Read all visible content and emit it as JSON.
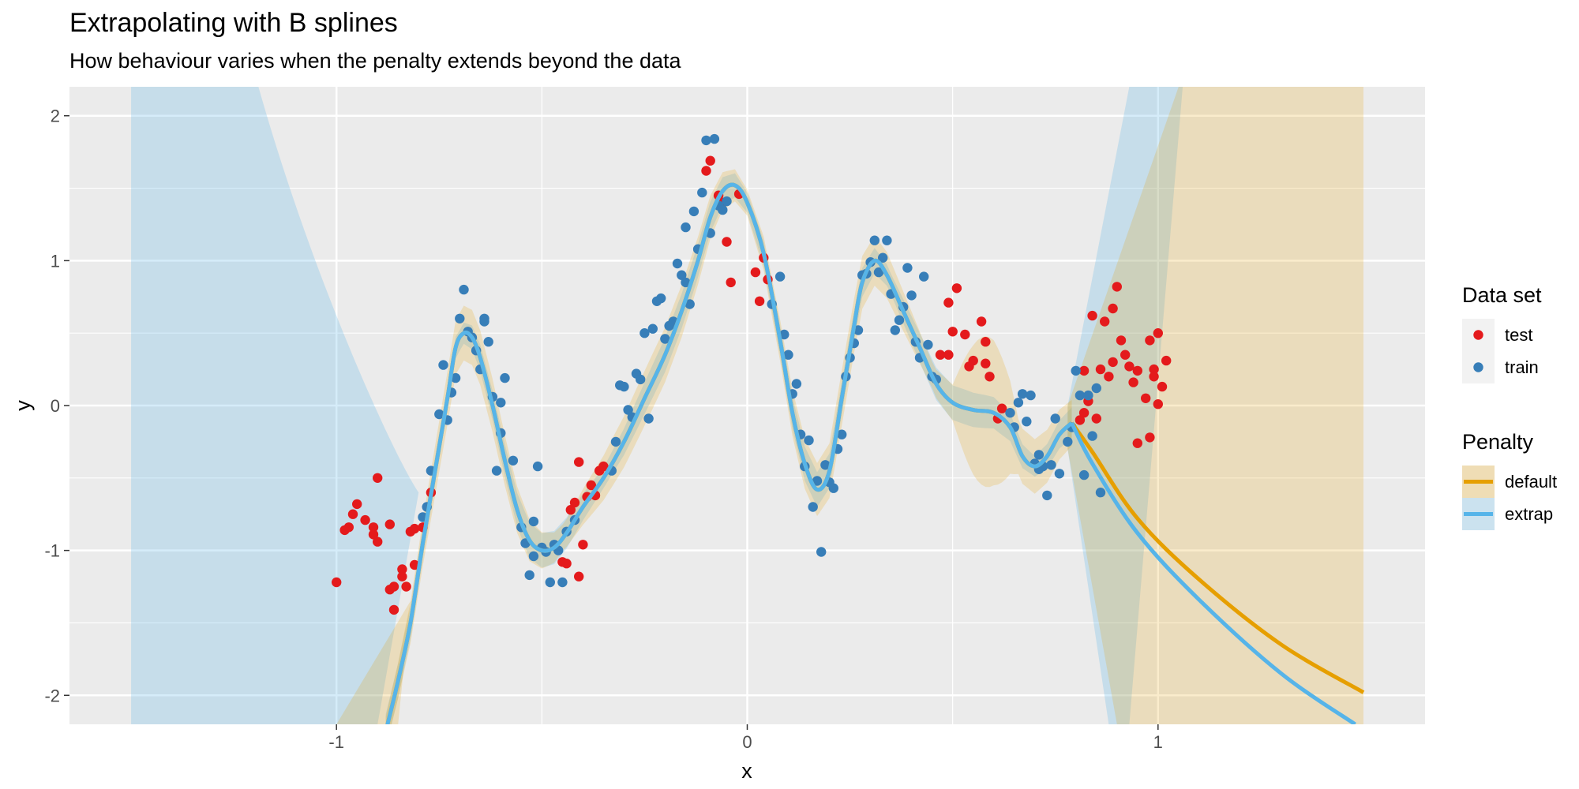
{
  "chart_data": {
    "type": "scatter",
    "title": "Extrapolating with B splines",
    "subtitle": "How behaviour varies when the penalty extends beyond the data",
    "xlabel": "x",
    "ylabel": "y",
    "xlim": [
      -1.65,
      1.65
    ],
    "ylim": [
      -2.2,
      2.2
    ],
    "x_ticks": [
      -1,
      0,
      1
    ],
    "x_tick_labels": [
      "-1",
      "0",
      "1"
    ],
    "y_ticks": [
      -2,
      -1,
      0,
      1,
      2
    ],
    "y_tick_labels": [
      "-2",
      "-1",
      "0",
      "1",
      "2"
    ],
    "grid": true,
    "legend_position": "right",
    "colors": {
      "panel": "#ebebeb",
      "grid": "#ffffff",
      "test": "#e41a1c",
      "train": "#377eb8",
      "default": "#e69f00",
      "extrap": "#56b4e9"
    },
    "legends": [
      {
        "title": "Data set",
        "entries": [
          {
            "label": "test",
            "key": "test"
          },
          {
            "label": "train",
            "key": "train"
          }
        ]
      },
      {
        "title": "Penalty",
        "entries": [
          {
            "label": "default",
            "key": "default"
          },
          {
            "label": "extrap",
            "key": "extrap"
          }
        ]
      }
    ],
    "points": {
      "test": [
        [
          -1.0,
          -1.22
        ],
        [
          -0.98,
          -0.86
        ],
        [
          -0.97,
          -0.84
        ],
        [
          -0.96,
          -0.75
        ],
        [
          -0.95,
          -0.68
        ],
        [
          -0.93,
          -0.79
        ],
        [
          -0.91,
          -0.84
        ],
        [
          -0.91,
          -0.89
        ],
        [
          -0.9,
          -0.94
        ],
        [
          -0.9,
          -0.5
        ],
        [
          -0.87,
          -1.27
        ],
        [
          -0.87,
          -0.82
        ],
        [
          -0.86,
          -1.41
        ],
        [
          -0.86,
          -1.25
        ],
        [
          -0.84,
          -1.13
        ],
        [
          -0.84,
          -1.18
        ],
        [
          -0.83,
          -1.25
        ],
        [
          -0.82,
          -0.87
        ],
        [
          -0.81,
          -0.85
        ],
        [
          -0.81,
          -1.1
        ],
        [
          -0.79,
          -0.84
        ],
        [
          -0.77,
          -0.6
        ],
        [
          -0.45,
          -1.08
        ],
        [
          -0.44,
          -1.09
        ],
        [
          -0.43,
          -0.72
        ],
        [
          -0.42,
          -0.67
        ],
        [
          -0.41,
          -1.18
        ],
        [
          -0.4,
          -0.96
        ],
        [
          -0.39,
          -0.63
        ],
        [
          -0.38,
          -0.55
        ],
        [
          -0.37,
          -0.62
        ],
        [
          -0.36,
          -0.45
        ],
        [
          -0.35,
          -0.42
        ],
        [
          -0.41,
          -0.39
        ],
        [
          -0.1,
          1.62
        ],
        [
          -0.09,
          1.69
        ],
        [
          -0.07,
          1.45
        ],
        [
          -0.06,
          1.4
        ],
        [
          -0.05,
          1.13
        ],
        [
          -0.04,
          0.85
        ],
        [
          -0.02,
          1.46
        ],
        [
          0.02,
          0.92
        ],
        [
          0.03,
          0.72
        ],
        [
          0.04,
          1.02
        ],
        [
          0.05,
          0.87
        ],
        [
          0.47,
          0.35
        ],
        [
          0.49,
          0.35
        ],
        [
          0.49,
          0.71
        ],
        [
          0.5,
          0.51
        ],
        [
          0.51,
          0.81
        ],
        [
          0.53,
          0.49
        ],
        [
          0.54,
          0.27
        ],
        [
          0.55,
          0.31
        ],
        [
          0.57,
          0.58
        ],
        [
          0.58,
          0.44
        ],
        [
          0.58,
          0.29
        ],
        [
          0.59,
          0.2
        ],
        [
          0.61,
          -0.09
        ],
        [
          0.62,
          -0.02
        ],
        [
          0.81,
          -0.1
        ],
        [
          0.82,
          0.24
        ],
        [
          0.82,
          -0.05
        ],
        [
          0.83,
          0.03
        ],
        [
          0.84,
          0.62
        ],
        [
          0.85,
          -0.09
        ],
        [
          0.86,
          0.25
        ],
        [
          0.87,
          0.58
        ],
        [
          0.88,
          0.2
        ],
        [
          0.89,
          0.67
        ],
        [
          0.89,
          0.3
        ],
        [
          0.9,
          0.82
        ],
        [
          0.91,
          0.45
        ],
        [
          0.92,
          0.35
        ],
        [
          0.93,
          0.27
        ],
        [
          0.94,
          0.16
        ],
        [
          0.95,
          0.24
        ],
        [
          0.95,
          -0.26
        ],
        [
          0.97,
          0.05
        ],
        [
          0.98,
          0.45
        ],
        [
          0.98,
          -0.22
        ],
        [
          0.99,
          0.25
        ],
        [
          0.99,
          0.2
        ],
        [
          1.0,
          0.01
        ],
        [
          1.0,
          0.5
        ],
        [
          1.01,
          0.13
        ],
        [
          1.02,
          0.31
        ]
      ],
      "train": [
        [
          -0.79,
          -0.77
        ],
        [
          -0.78,
          -0.7
        ],
        [
          -0.77,
          -0.45
        ],
        [
          -0.75,
          -0.06
        ],
        [
          -0.74,
          0.28
        ],
        [
          -0.73,
          -0.1
        ],
        [
          -0.72,
          0.09
        ],
        [
          -0.71,
          0.19
        ],
        [
          -0.7,
          0.6
        ],
        [
          -0.69,
          0.8
        ],
        [
          -0.68,
          0.51
        ],
        [
          -0.67,
          0.47
        ],
        [
          -0.66,
          0.38
        ],
        [
          -0.65,
          0.25
        ],
        [
          -0.64,
          0.58
        ],
        [
          -0.64,
          0.6
        ],
        [
          -0.63,
          0.44
        ],
        [
          -0.62,
          0.06
        ],
        [
          -0.61,
          -0.45
        ],
        [
          -0.6,
          0.02
        ],
        [
          -0.6,
          -0.19
        ],
        [
          -0.59,
          0.19
        ],
        [
          -0.57,
          -0.38
        ],
        [
          -0.55,
          -0.84
        ],
        [
          -0.54,
          -0.95
        ],
        [
          -0.53,
          -1.17
        ],
        [
          -0.52,
          -1.04
        ],
        [
          -0.52,
          -0.8
        ],
        [
          -0.51,
          -0.42
        ],
        [
          -0.5,
          -0.98
        ],
        [
          -0.49,
          -1.01
        ],
        [
          -0.48,
          -1.22
        ],
        [
          -0.47,
          -0.96
        ],
        [
          -0.46,
          -1.0
        ],
        [
          -0.45,
          -1.22
        ],
        [
          -0.44,
          -0.87
        ],
        [
          -0.42,
          -0.79
        ],
        [
          -0.33,
          -0.45
        ],
        [
          -0.32,
          -0.25
        ],
        [
          -0.31,
          0.14
        ],
        [
          -0.3,
          0.13
        ],
        [
          -0.29,
          -0.03
        ],
        [
          -0.28,
          -0.08
        ],
        [
          -0.27,
          0.22
        ],
        [
          -0.26,
          0.18
        ],
        [
          -0.25,
          0.5
        ],
        [
          -0.24,
          -0.09
        ],
        [
          -0.23,
          0.53
        ],
        [
          -0.22,
          0.72
        ],
        [
          -0.21,
          0.74
        ],
        [
          -0.2,
          0.46
        ],
        [
          -0.19,
          0.55
        ],
        [
          -0.18,
          0.58
        ],
        [
          -0.17,
          0.98
        ],
        [
          -0.16,
          0.9
        ],
        [
          -0.15,
          1.23
        ],
        [
          -0.15,
          0.85
        ],
        [
          -0.14,
          0.7
        ],
        [
          -0.13,
          1.34
        ],
        [
          -0.12,
          1.08
        ],
        [
          -0.11,
          1.47
        ],
        [
          -0.1,
          1.83
        ],
        [
          -0.09,
          1.19
        ],
        [
          -0.08,
          1.84
        ],
        [
          -0.07,
          1.38
        ],
        [
          -0.06,
          1.35
        ],
        [
          -0.05,
          1.41
        ],
        [
          0.06,
          0.7
        ],
        [
          0.08,
          0.89
        ],
        [
          0.09,
          0.49
        ],
        [
          0.1,
          0.35
        ],
        [
          0.11,
          0.08
        ],
        [
          0.12,
          0.15
        ],
        [
          0.13,
          -0.2
        ],
        [
          0.14,
          -0.42
        ],
        [
          0.15,
          -0.24
        ],
        [
          0.16,
          -0.7
        ],
        [
          0.17,
          -0.52
        ],
        [
          0.18,
          -1.01
        ],
        [
          0.19,
          -0.41
        ],
        [
          0.2,
          -0.53
        ],
        [
          0.21,
          -0.57
        ],
        [
          0.22,
          -0.3
        ],
        [
          0.23,
          -0.2
        ],
        [
          0.24,
          0.2
        ],
        [
          0.25,
          0.33
        ],
        [
          0.26,
          0.43
        ],
        [
          0.27,
          0.52
        ],
        [
          0.28,
          0.9
        ],
        [
          0.29,
          0.91
        ],
        [
          0.3,
          0.99
        ],
        [
          0.31,
          1.14
        ],
        [
          0.32,
          0.92
        ],
        [
          0.33,
          1.02
        ],
        [
          0.34,
          1.14
        ],
        [
          0.35,
          0.77
        ],
        [
          0.36,
          0.52
        ],
        [
          0.37,
          0.59
        ],
        [
          0.38,
          0.68
        ],
        [
          0.39,
          0.95
        ],
        [
          0.4,
          0.76
        ],
        [
          0.41,
          0.44
        ],
        [
          0.42,
          0.33
        ],
        [
          0.43,
          0.89
        ],
        [
          0.44,
          0.42
        ],
        [
          0.45,
          0.2
        ],
        [
          0.46,
          0.18
        ],
        [
          0.64,
          -0.05
        ],
        [
          0.65,
          -0.15
        ],
        [
          0.66,
          0.02
        ],
        [
          0.67,
          0.08
        ],
        [
          0.68,
          -0.11
        ],
        [
          0.69,
          0.07
        ],
        [
          0.7,
          -0.4
        ],
        [
          0.71,
          -0.44
        ],
        [
          0.72,
          -0.42
        ],
        [
          0.73,
          -0.62
        ],
        [
          0.74,
          -0.41
        ],
        [
          0.75,
          -0.09
        ],
        [
          0.76,
          -0.47
        ],
        [
          0.78,
          -0.25
        ],
        [
          0.79,
          -0.15
        ],
        [
          0.8,
          0.24
        ],
        [
          0.81,
          0.07
        ],
        [
          0.82,
          -0.48
        ],
        [
          0.83,
          0.07
        ],
        [
          0.84,
          -0.21
        ],
        [
          0.85,
          0.12
        ],
        [
          0.86,
          -0.6
        ],
        [
          0.71,
          -0.34
        ]
      ]
    },
    "fits": {
      "shared": [
        [
          -0.88,
          -2.25
        ],
        [
          -0.85,
          -1.9
        ],
        [
          -0.82,
          -1.5
        ],
        [
          -0.79,
          -0.95
        ],
        [
          -0.76,
          -0.45
        ],
        [
          -0.73,
          0.05
        ],
        [
          -0.71,
          0.4
        ],
        [
          -0.69,
          0.5
        ],
        [
          -0.67,
          0.47
        ],
        [
          -0.65,
          0.33
        ],
        [
          -0.62,
          0.0
        ],
        [
          -0.59,
          -0.38
        ],
        [
          -0.56,
          -0.72
        ],
        [
          -0.53,
          -0.93
        ],
        [
          -0.5,
          -1.0
        ],
        [
          -0.47,
          -0.98
        ],
        [
          -0.44,
          -0.88
        ],
        [
          -0.4,
          -0.7
        ],
        [
          -0.35,
          -0.5
        ],
        [
          -0.3,
          -0.25
        ],
        [
          -0.25,
          0.05
        ],
        [
          -0.2,
          0.35
        ],
        [
          -0.16,
          0.65
        ],
        [
          -0.12,
          1.0
        ],
        [
          -0.09,
          1.3
        ],
        [
          -0.06,
          1.48
        ],
        [
          -0.03,
          1.52
        ],
        [
          0.0,
          1.4
        ],
        [
          0.04,
          1.05
        ],
        [
          0.08,
          0.45
        ],
        [
          0.11,
          -0.05
        ],
        [
          0.14,
          -0.4
        ],
        [
          0.17,
          -0.58
        ],
        [
          0.2,
          -0.45
        ],
        [
          0.23,
          0.05
        ],
        [
          0.26,
          0.55
        ],
        [
          0.28,
          0.85
        ],
        [
          0.31,
          1.0
        ],
        [
          0.34,
          0.9
        ],
        [
          0.38,
          0.65
        ],
        [
          0.42,
          0.4
        ],
        [
          0.46,
          0.15
        ],
        [
          0.5,
          0.02
        ],
        [
          0.55,
          -0.03
        ],
        [
          0.6,
          -0.05
        ],
        [
          0.64,
          -0.15
        ],
        [
          0.67,
          -0.35
        ],
        [
          0.7,
          -0.42
        ],
        [
          0.73,
          -0.35
        ],
        [
          0.76,
          -0.2
        ],
        [
          0.79,
          -0.12
        ]
      ],
      "default": [
        [
          0.79,
          -0.12
        ],
        [
          0.84,
          -0.32
        ],
        [
          0.95,
          -0.78
        ],
        [
          1.1,
          -1.2
        ],
        [
          1.3,
          -1.65
        ],
        [
          1.5,
          -1.98
        ]
      ],
      "extrap": [
        [
          0.79,
          -0.12
        ],
        [
          0.84,
          -0.4
        ],
        [
          0.95,
          -0.88
        ],
        [
          1.1,
          -1.34
        ],
        [
          1.3,
          -1.85
        ],
        [
          1.48,
          -2.2
        ]
      ]
    }
  }
}
